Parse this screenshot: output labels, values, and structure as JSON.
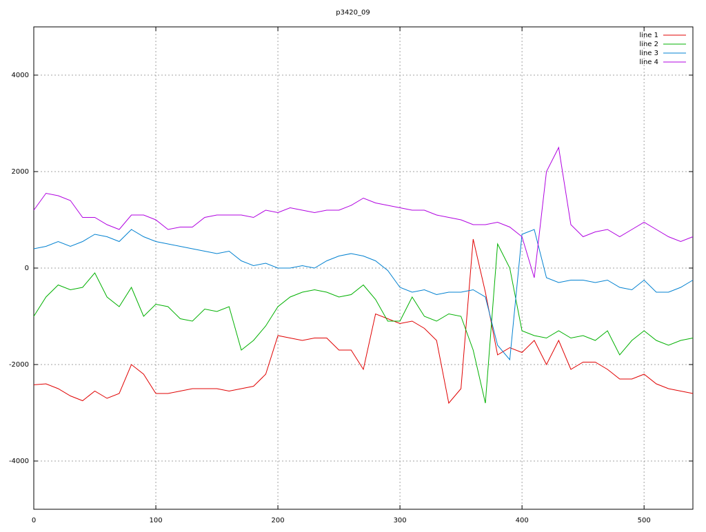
{
  "chart_data": {
    "type": "line",
    "title": "p3420_09",
    "x": [
      0,
      10,
      20,
      30,
      40,
      50,
      60,
      70,
      80,
      90,
      100,
      110,
      120,
      130,
      140,
      150,
      160,
      170,
      180,
      190,
      200,
      210,
      220,
      230,
      240,
      250,
      260,
      270,
      280,
      290,
      300,
      310,
      320,
      330,
      340,
      350,
      360,
      370,
      380,
      390,
      400,
      410,
      420,
      430,
      440,
      450,
      460,
      470,
      480,
      490,
      500,
      510,
      520,
      530,
      540
    ],
    "series": [
      {
        "name": "line 1",
        "color": "#e00000",
        "values": [
          -2420,
          -2400,
          -2500,
          -2650,
          -2750,
          -2550,
          -2700,
          -2600,
          -2000,
          -2200,
          -2600,
          -2600,
          -2550,
          -2500,
          -2500,
          -2500,
          -2550,
          -2500,
          -2450,
          -2200,
          -1400,
          -1450,
          -1500,
          -1450,
          -1450,
          -1700,
          -1700,
          -2100,
          -950,
          -1050,
          -1150,
          -1100,
          -1250,
          -1500,
          -2800,
          -2500,
          600,
          -500,
          -1800,
          -1650,
          -1750,
          -1500,
          -2000,
          -1500,
          -2100,
          -1950,
          -1950,
          -2100,
          -2300,
          -2300,
          -2200,
          -2400,
          -2500,
          -2550,
          -2600
        ]
      },
      {
        "name": "line 2",
        "color": "#00b000",
        "values": [
          -1000,
          -600,
          -350,
          -450,
          -400,
          -100,
          -600,
          -800,
          -400,
          -1000,
          -750,
          -800,
          -1050,
          -1100,
          -850,
          -900,
          -800,
          -1700,
          -1500,
          -1200,
          -800,
          -600,
          -500,
          -450,
          -500,
          -600,
          -550,
          -350,
          -650,
          -1100,
          -1100,
          -600,
          -1000,
          -1100,
          -950,
          -1000,
          -1700,
          -2800,
          500,
          0,
          -1300,
          -1400,
          -1450,
          -1300,
          -1450,
          -1400,
          -1500,
          -1300,
          -1800,
          -1500,
          -1300,
          -1500,
          -1600,
          -1500,
          -1450
        ]
      },
      {
        "name": "line 3",
        "color": "#0080d0",
        "values": [
          400,
          450,
          550,
          450,
          550,
          700,
          650,
          550,
          800,
          650,
          550,
          500,
          450,
          400,
          350,
          300,
          350,
          150,
          50,
          100,
          0,
          0,
          50,
          0,
          150,
          250,
          300,
          250,
          150,
          -50,
          -400,
          -500,
          -450,
          -550,
          -500,
          -500,
          -450,
          -600,
          -1600,
          -1900,
          700,
          800,
          -200,
          -300,
          -250,
          -250,
          -300,
          -250,
          -400,
          -450,
          -250,
          -500,
          -500,
          -400,
          -250
        ]
      },
      {
        "name": "line 4",
        "color": "#b000e0",
        "values": [
          1200,
          1550,
          1500,
          1400,
          1050,
          1050,
          900,
          800,
          1100,
          1100,
          1000,
          800,
          850,
          850,
          1050,
          1100,
          1100,
          1100,
          1050,
          1200,
          1150,
          1250,
          1200,
          1150,
          1200,
          1200,
          1300,
          1450,
          1350,
          1300,
          1250,
          1200,
          1200,
          1100,
          1050,
          1000,
          900,
          900,
          950,
          850,
          650,
          -200,
          2000,
          2500,
          900,
          650,
          750,
          800,
          650,
          800,
          950,
          800,
          650,
          550,
          650
        ]
      }
    ],
    "xlim": [
      0,
      540
    ],
    "ylim": [
      -5000,
      5000
    ],
    "xticks": [
      0,
      100,
      200,
      300,
      400,
      500
    ],
    "yticks": [
      -4000,
      -2000,
      0,
      2000,
      4000
    ],
    "grid": true,
    "legend": "top-right"
  }
}
